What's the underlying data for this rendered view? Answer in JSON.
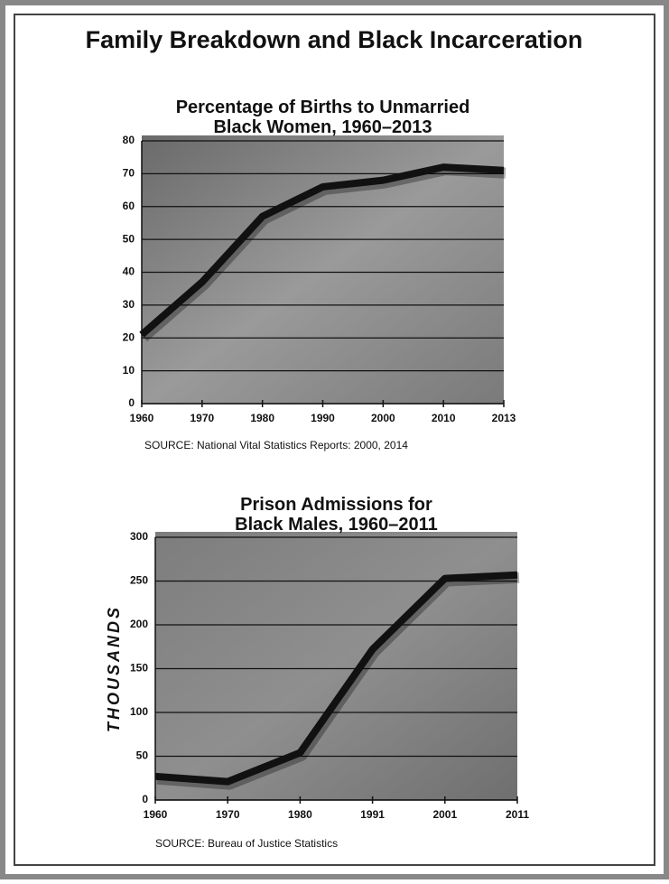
{
  "title": "Family Breakdown and Black Incarceration",
  "chart_data": [
    {
      "type": "line",
      "title": "Percentage of Births to Unmarried Black Women, 1960–2013",
      "categories": [
        "1960",
        "1970",
        "1980",
        "1990",
        "2000",
        "2010",
        "2013"
      ],
      "values": [
        21,
        37,
        57,
        66,
        68,
        72,
        71
      ],
      "color": "#111111",
      "ylim": [
        0,
        80
      ],
      "yticks": [
        0,
        10,
        20,
        30,
        40,
        50,
        60,
        70,
        80
      ],
      "grid": true,
      "source": "SOURCE: National Vital Statistics Reports: 2000, 2014"
    },
    {
      "type": "line",
      "title": "Prison Admissions for Black Males, 1960–2011",
      "y_label": "THOUSANDS",
      "categories": [
        "1960",
        "1970",
        "1980",
        "1991",
        "2001",
        "2011"
      ],
      "values": [
        27,
        21,
        54,
        172,
        253,
        257
      ],
      "color": "#111111",
      "ylim": [
        0,
        300
      ],
      "yticks": [
        0,
        50,
        100,
        150,
        200,
        250,
        300
      ],
      "grid": true,
      "source": "SOURCE: Bureau of Justice Statistics"
    }
  ]
}
